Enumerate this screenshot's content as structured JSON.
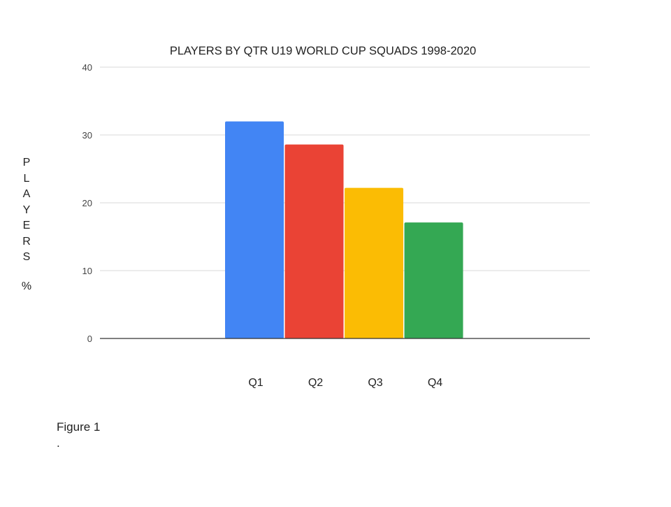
{
  "chart_data": {
    "type": "bar",
    "title": "PLAYERS BY QTR U19 WORLD CUP SQUADS 1998-2020",
    "ylabel_letters": [
      "P",
      "L",
      "A",
      "Y",
      "E",
      "R",
      "S"
    ],
    "yunit": "%",
    "xlabel": "",
    "categories": [
      "Q1",
      "Q2",
      "Q3",
      "Q4"
    ],
    "values": [
      32,
      28.6,
      22.2,
      17.1
    ],
    "colors": [
      "#4285f4",
      "#ea4335",
      "#fbbc04",
      "#34a853"
    ],
    "ylim": [
      0,
      40
    ],
    "yticks": [
      0,
      10,
      20,
      30,
      40
    ],
    "grid": true,
    "legend": "none"
  },
  "caption": "Figure 1",
  "caption_dot": "."
}
